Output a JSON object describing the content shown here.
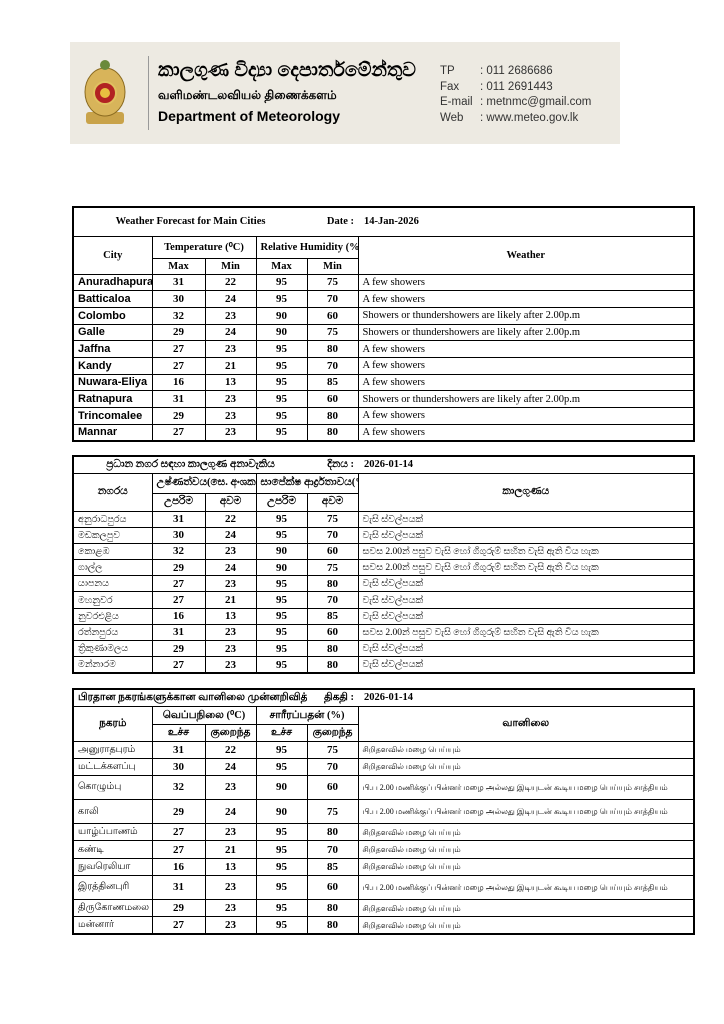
{
  "header": {
    "org_si": "කාලගුණ විද්‍යා දෙපාර්තමේන්තුව",
    "org_ta": "வளிமண்டலவியல் திணைக்களம்",
    "org_en": "Department of Meteorology",
    "contacts": [
      {
        "k": "TP",
        "v": ": 011 2686686"
      },
      {
        "k": "Fax",
        "v": ": 011 2691443"
      },
      {
        "k": "E-mail",
        "v": ": metnmc@gmail.com"
      },
      {
        "k": "Web",
        "v": ": www.meteo.gov.lk"
      }
    ]
  },
  "colors": {
    "banner": "#edeae2"
  },
  "values": [
    [
      "31",
      "22",
      "95",
      "75"
    ],
    [
      "30",
      "24",
      "95",
      "70"
    ],
    [
      "32",
      "23",
      "90",
      "60"
    ],
    [
      "29",
      "24",
      "90",
      "75"
    ],
    [
      "27",
      "23",
      "95",
      "80"
    ],
    [
      "27",
      "21",
      "95",
      "70"
    ],
    [
      "16",
      "13",
      "95",
      "85"
    ],
    [
      "31",
      "23",
      "95",
      "60"
    ],
    [
      "29",
      "23",
      "95",
      "80"
    ],
    [
      "27",
      "23",
      "95",
      "80"
    ]
  ],
  "wxcode": [
    0,
    0,
    1,
    1,
    0,
    0,
    0,
    1,
    0,
    0
  ],
  "tables": [
    {
      "title": "Weather Forecast for Main Cities",
      "date_label": "Date :",
      "date": "14-Jan-2026",
      "city": "City",
      "temp": "Temperature (⁰C)",
      "hum": "Relative Humidity (%)",
      "max": "Max",
      "min": "Min",
      "weather": "Weather",
      "cities": [
        "Anuradhapura",
        "Batticaloa",
        "Colombo",
        "Galle",
        "Jaffna",
        "Kandy",
        "Nuwara-Eliya",
        "Ratnapura",
        "Trincomalee",
        "Mannar"
      ],
      "wx": [
        "A few showers",
        "Showers or thundershowers are likely after 2.00p.m"
      ]
    },
    {
      "title": "ප්‍රධාන නගර සඳහා කාලගුණ අනාවැකිය",
      "date_label": "දිනය :",
      "date": "2026-01-14",
      "city": "නගරය",
      "temp": "උෂ්ණත්වය(සෙ. අංශක)",
      "hum": "සාපේක්ෂ ආර්ද්‍රතාවය(%)",
      "max": "උපරිම",
      "min": "අවම",
      "weather": "කාලගුණය",
      "cities": [
        "අනුරාධපුරය",
        "මඩකලපුව",
        "කොළඹ",
        "ගාල්ල",
        "යාපනය",
        "මහනුවර",
        "නුවරඑළිය",
        "රත්නපුරය",
        "ත්‍රිකුණාමලය",
        "මන්නාරම"
      ],
      "wx": [
        "වැසි ස්වල්පයක්",
        "සවස 2.00න් පසුව වැසි හෝ ගිගුරුම් සහිත වැසි ඇති විය හැක"
      ]
    },
    {
      "title": "பிரதான நகரங்களுக்கான வானிலை முன்னறிவித்தல்",
      "date_label": "திகதி :",
      "date": "2026-01-14",
      "city": "நகரம்",
      "temp": "வெப்பநிலை (⁰C)",
      "hum": "சாரீரப்பதன் (%)",
      "max": "உச்ச",
      "min": "குறைந்த",
      "weather": "வானிலை",
      "cities": [
        "அனுராதபுரம்",
        "மட்டக்களப்பு",
        "கொழும்பு",
        "காலி",
        "யாழ்ப்பாணம்",
        "கண்டி",
        "நுவரெலியா",
        "இரத்தினபுரி",
        "திருகோணமலை",
        "மன்னார்"
      ],
      "wx": [
        "சிறிதளவில் மழை பெய்யும்",
        "பி.ப 2.00 மணிக்குப் பின்னர் மழை அல்லது இடியுடன் கூடிய மழை பெய்யும் சாத்தியம்"
      ]
    }
  ]
}
